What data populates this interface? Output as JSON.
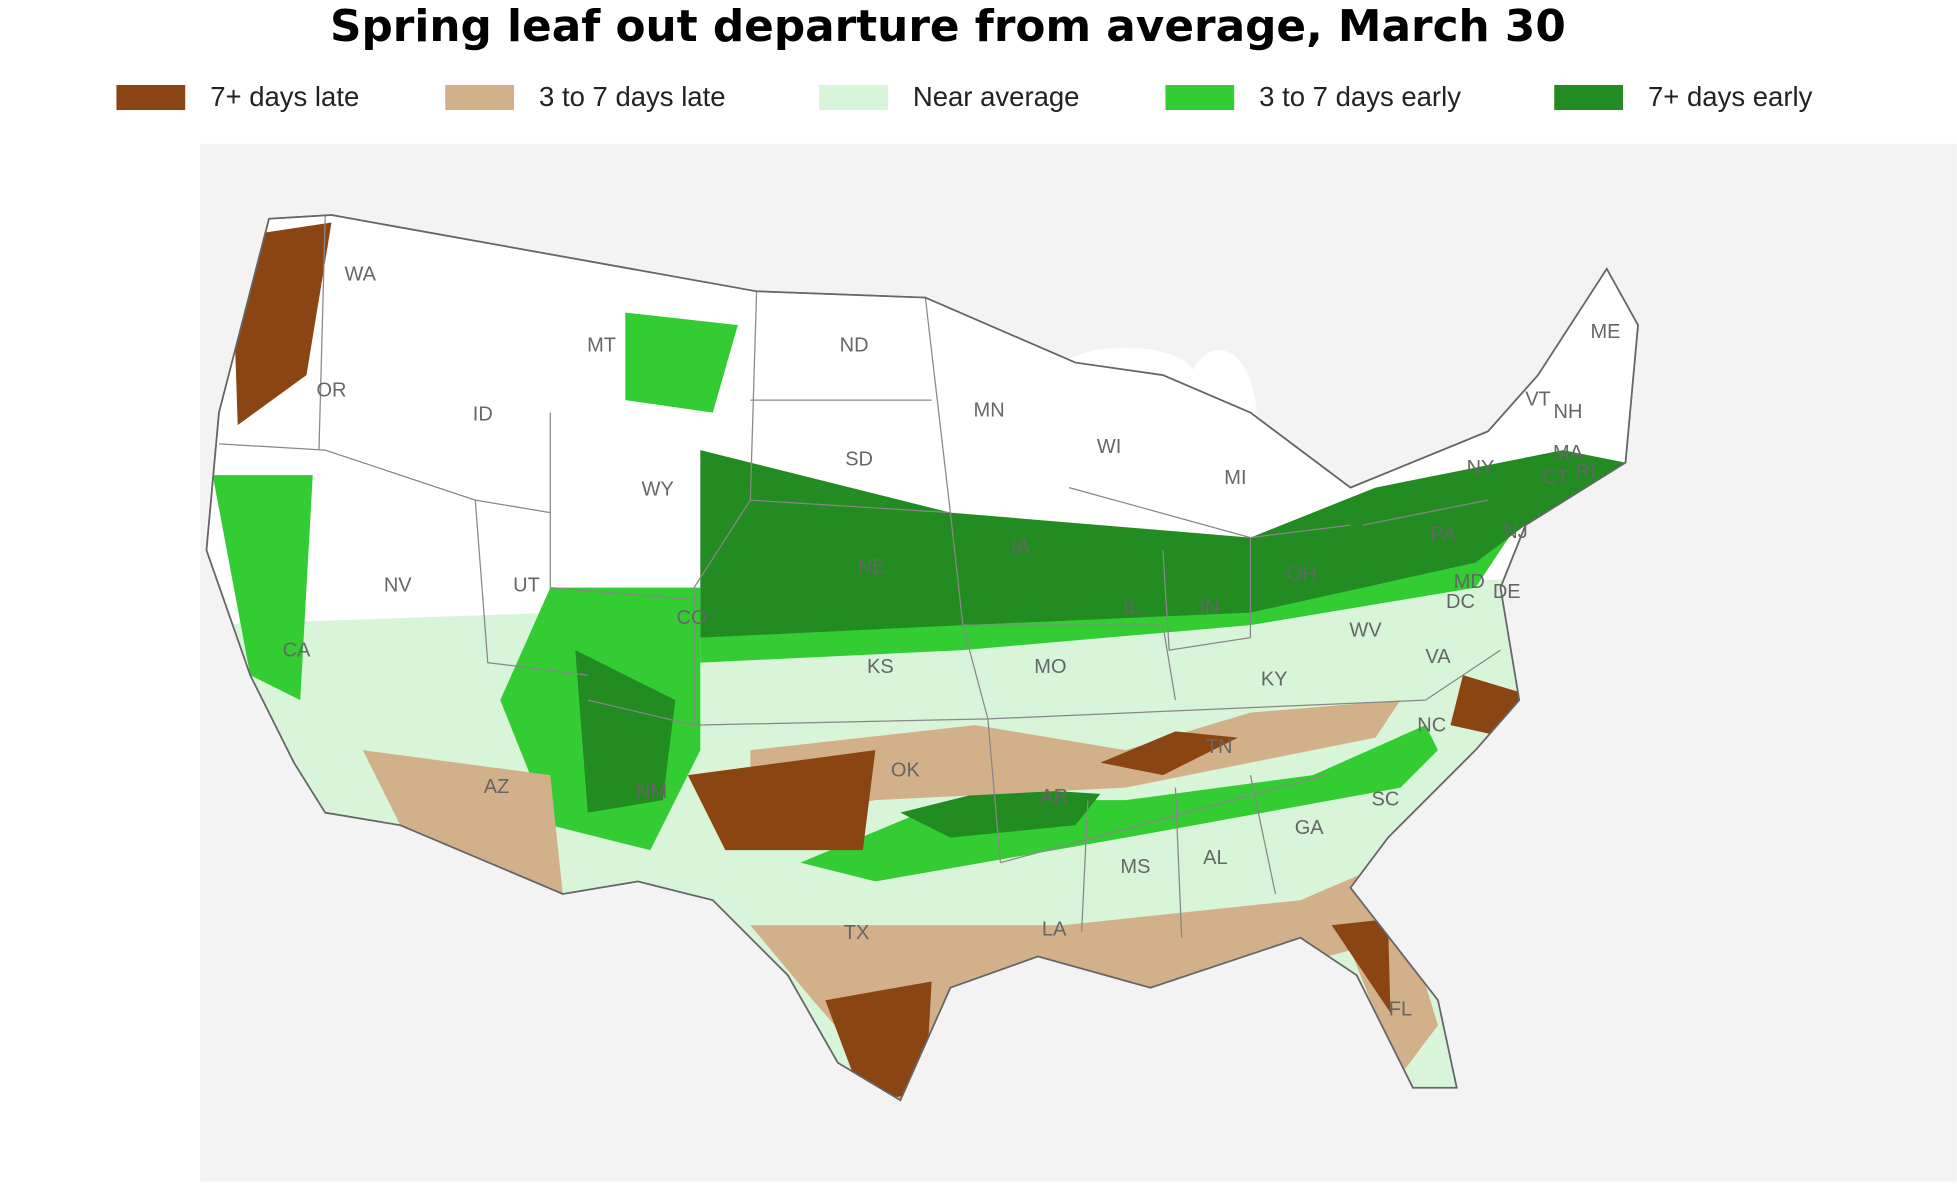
{
  "title": "Spring leaf out departure from average, March 30",
  "legend": [
    {
      "label": "7+ days late",
      "color": "#8b4513"
    },
    {
      "label": "3 to 7 days late",
      "color": "#d2b08a"
    },
    {
      "label": "Near average",
      "color": "#d8f5da"
    },
    {
      "label": "3 to 7 days early",
      "color": "#33cc33"
    },
    {
      "label": "7+ days early",
      "color": "#228b22"
    }
  ],
  "states": [
    "WA",
    "OR",
    "CA",
    "NV",
    "ID",
    "MT",
    "WY",
    "UT",
    "CO",
    "AZ",
    "NM",
    "ND",
    "SD",
    "NE",
    "KS",
    "OK",
    "TX",
    "MN",
    "IA",
    "MO",
    "AR",
    "LA",
    "WI",
    "IL",
    "MS",
    "MI",
    "IN",
    "KY",
    "TN",
    "AL",
    "GA",
    "FL",
    "SC",
    "NC",
    "VA",
    "WV",
    "OH",
    "PA",
    "NY",
    "VT",
    "NH",
    "ME",
    "MA",
    "CT",
    "RI",
    "NJ",
    "DE",
    "MD",
    "DC"
  ]
}
